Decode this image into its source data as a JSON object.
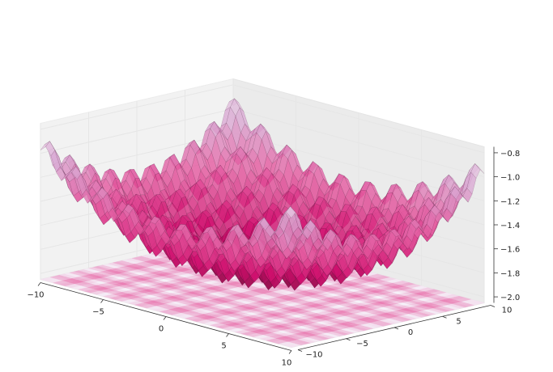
{
  "chart_data": {
    "type": "surface3d",
    "title": "",
    "x_axis": {
      "label": "",
      "range": [
        -10,
        10
      ],
      "ticks": [
        -10,
        -5,
        0,
        5,
        10
      ],
      "tick_labels": [
        "−10",
        "−5",
        "0",
        "5",
        "10"
      ]
    },
    "y_axis": {
      "label": "",
      "range": [
        -10,
        10
      ],
      "ticks": [
        -10,
        -5,
        0,
        5,
        10
      ],
      "tick_labels": [
        "−10",
        "−5",
        "0",
        "5",
        "10"
      ]
    },
    "z_axis": {
      "label": "",
      "range": [
        -2.05,
        -0.75
      ],
      "ticks": [
        -2.0,
        -1.8,
        -1.6,
        -1.4,
        -1.2,
        -1.0,
        -0.8
      ],
      "tick_labels": [
        "−2.0",
        "−1.8",
        "−1.6",
        "−1.4",
        "−1.2",
        "−1.0",
        "−0.8"
      ]
    },
    "surface": {
      "z_min": -2.0,
      "z_max": -0.75,
      "colormap": [
        "#f2e6f0",
        "#d9a7d2",
        "#e45ba0",
        "#d0106e",
        "#7a0a3c"
      ]
    },
    "contour_projection": {
      "plane": "floor",
      "colormap": [
        "#f6f3fa",
        "#eeb6d6",
        "#ea7fb4"
      ]
    },
    "grid": true,
    "colors": {
      "pane": "#f0f0f0",
      "grid": "#e6e6e6",
      "text": "#222222"
    }
  }
}
